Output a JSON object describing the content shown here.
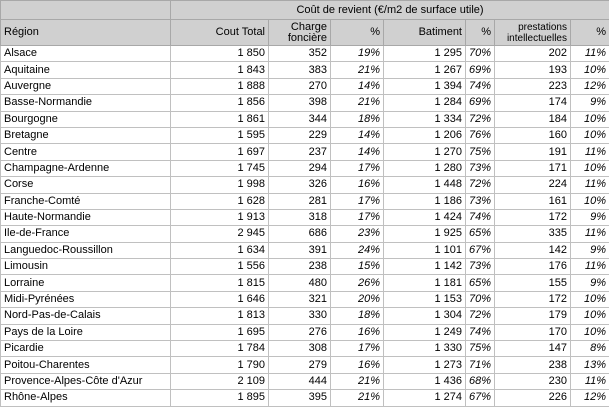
{
  "table": {
    "group_header": "Coût de revient (€/m2 de surface utile)",
    "columns": [
      "Région",
      "Cout Total",
      "Charge foncière",
      "%",
      "Batiment",
      "%",
      "prestations intellectuelles",
      "%"
    ],
    "rows": [
      [
        "Alsace",
        "1 850",
        "352",
        "19%",
        "1 295",
        "70%",
        "202",
        "11%"
      ],
      [
        "Aquitaine",
        "1 843",
        "383",
        "21%",
        "1 267",
        "69%",
        "193",
        "10%"
      ],
      [
        "Auvergne",
        "1 888",
        "270",
        "14%",
        "1 394",
        "74%",
        "223",
        "12%"
      ],
      [
        "Basse-Normandie",
        "1 856",
        "398",
        "21%",
        "1 284",
        "69%",
        "174",
        "9%"
      ],
      [
        "Bourgogne",
        "1 861",
        "344",
        "18%",
        "1 334",
        "72%",
        "184",
        "10%"
      ],
      [
        "Bretagne",
        "1 595",
        "229",
        "14%",
        "1 206",
        "76%",
        "160",
        "10%"
      ],
      [
        "Centre",
        "1 697",
        "237",
        "14%",
        "1 270",
        "75%",
        "191",
        "11%"
      ],
      [
        "Champagne-Ardenne",
        "1 745",
        "294",
        "17%",
        "1 280",
        "73%",
        "171",
        "10%"
      ],
      [
        "Corse",
        "1 998",
        "326",
        "16%",
        "1 448",
        "72%",
        "224",
        "11%"
      ],
      [
        "Franche-Comté",
        "1 628",
        "281",
        "17%",
        "1 186",
        "73%",
        "161",
        "10%"
      ],
      [
        "Haute-Normandie",
        "1 913",
        "318",
        "17%",
        "1 424",
        "74%",
        "172",
        "9%"
      ],
      [
        "Ile-de-France",
        "2 945",
        "686",
        "23%",
        "1 925",
        "65%",
        "335",
        "11%"
      ],
      [
        "Languedoc-Roussillon",
        "1 634",
        "391",
        "24%",
        "1 101",
        "67%",
        "142",
        "9%"
      ],
      [
        "Limousin",
        "1 556",
        "238",
        "15%",
        "1 142",
        "73%",
        "176",
        "11%"
      ],
      [
        "Lorraine",
        "1 815",
        "480",
        "26%",
        "1 181",
        "65%",
        "155",
        "9%"
      ],
      [
        "Midi-Pyrénées",
        "1 646",
        "321",
        "20%",
        "1 153",
        "70%",
        "172",
        "10%"
      ],
      [
        "Nord-Pas-de-Calais",
        "1 813",
        "330",
        "18%",
        "1 304",
        "72%",
        "179",
        "10%"
      ],
      [
        "Pays de la Loire",
        "1 695",
        "276",
        "16%",
        "1 249",
        "74%",
        "170",
        "10%"
      ],
      [
        "Picardie",
        "1 784",
        "308",
        "17%",
        "1 330",
        "75%",
        "147",
        "8%"
      ],
      [
        "Poitou-Charentes",
        "1 790",
        "279",
        "16%",
        "1 273",
        "71%",
        "238",
        "13%"
      ],
      [
        "Provence-Alpes-Côte d'Azur",
        "2 109",
        "444",
        "21%",
        "1 436",
        "68%",
        "230",
        "11%"
      ],
      [
        "Rhône-Alpes",
        "1 895",
        "395",
        "21%",
        "1 274",
        "67%",
        "226",
        "12%"
      ]
    ]
  }
}
